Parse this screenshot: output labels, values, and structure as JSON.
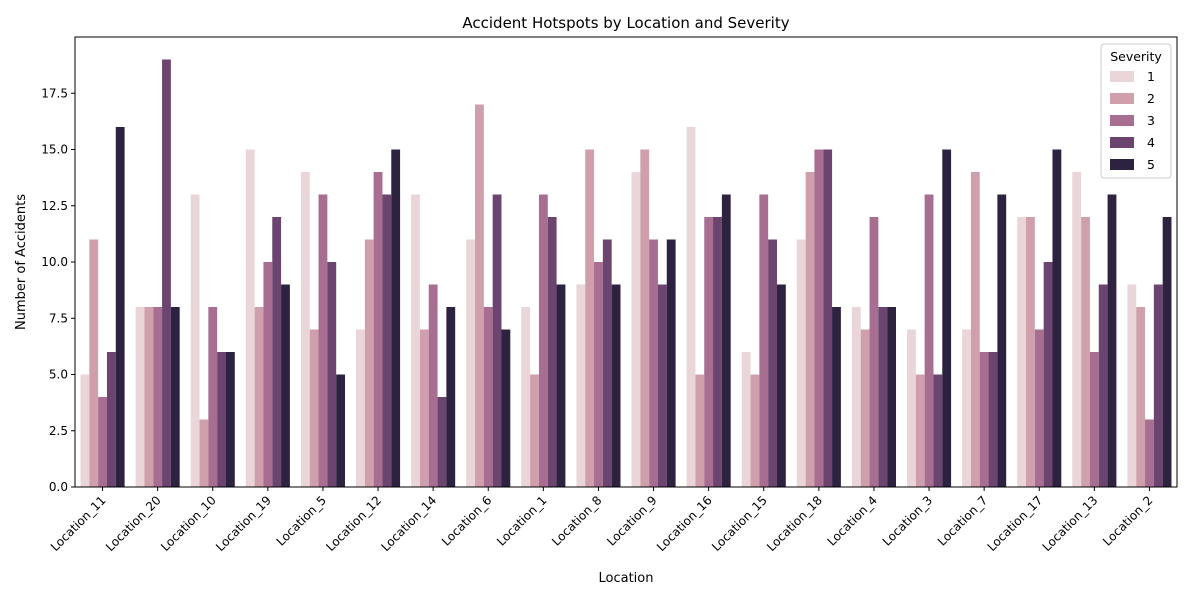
{
  "chart_data": {
    "type": "bar",
    "title": "Accident Hotspots by Location and Severity",
    "xlabel": "Location",
    "ylabel": "Number of Accidents",
    "ylim": [
      0,
      20
    ],
    "yticks": [
      "0.0",
      "2.5",
      "5.0",
      "7.5",
      "10.0",
      "12.5",
      "15.0",
      "17.5"
    ],
    "ytick_values": [
      0,
      2.5,
      5,
      7.5,
      10,
      12.5,
      15,
      17.5
    ],
    "grid": false,
    "legend": {
      "title": "Severity",
      "placement": "top-right"
    },
    "categories": [
      "Location_11",
      "Location_20",
      "Location_10",
      "Location_19",
      "Location_5",
      "Location_12",
      "Location_14",
      "Location_6",
      "Location_1",
      "Location_8",
      "Location_9",
      "Location_16",
      "Location_15",
      "Location_18",
      "Location_4",
      "Location_3",
      "Location_7",
      "Location_17",
      "Location_13",
      "Location_2"
    ],
    "series": [
      {
        "name": "1",
        "color": "#ead6d8",
        "values": [
          5,
          8,
          13,
          15,
          14,
          7,
          13,
          11,
          8,
          9,
          14,
          16,
          6,
          11,
          8,
          7,
          7,
          12,
          14,
          9
        ]
      },
      {
        "name": "2",
        "color": "#cfa0ab",
        "values": [
          11,
          8,
          3,
          8,
          7,
          11,
          7,
          17,
          5,
          15,
          15,
          5,
          5,
          14,
          7,
          5,
          14,
          12,
          12,
          8
        ]
      },
      {
        "name": "3",
        "color": "#a76e92",
        "values": [
          4,
          8,
          8,
          10,
          13,
          14,
          9,
          8,
          13,
          10,
          11,
          12,
          13,
          15,
          12,
          13,
          6,
          7,
          6,
          3
        ]
      },
      {
        "name": "4",
        "color": "#6c4470",
        "values": [
          6,
          19,
          6,
          12,
          10,
          13,
          4,
          13,
          12,
          11,
          9,
          12,
          11,
          15,
          8,
          5,
          6,
          10,
          9,
          9
        ]
      },
      {
        "name": "5",
        "color": "#2d2240",
        "values": [
          16,
          8,
          6,
          9,
          5,
          15,
          8,
          7,
          9,
          9,
          11,
          13,
          9,
          8,
          8,
          15,
          13,
          15,
          13,
          12
        ]
      }
    ]
  }
}
